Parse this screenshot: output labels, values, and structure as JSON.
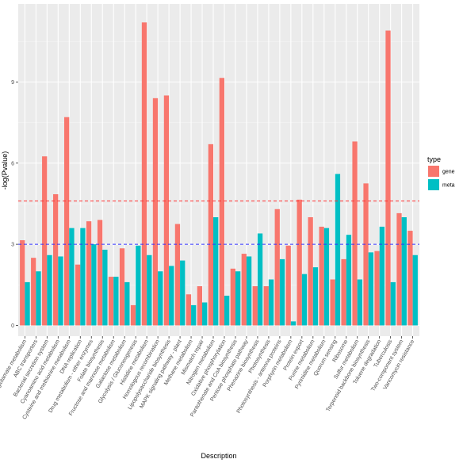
{
  "chart_data": {
    "type": "bar",
    "xlabel": "Description",
    "ylabel": "-log(Pvalue)",
    "ylim": [
      0,
      12
    ],
    "yticks": [
      0,
      3,
      6,
      9
    ],
    "grid": true,
    "legend": {
      "title": "type",
      "placement": "right",
      "entries": [
        {
          "name": "gene",
          "color": "#F8766D"
        },
        {
          "name": "meta",
          "color": "#00BFC4"
        }
      ]
    },
    "reference_lines": [
      {
        "y": 4.6,
        "color": "#FF3333",
        "style": "dashed"
      },
      {
        "y": 3.0,
        "color": "#3333FF",
        "style": "dashed"
      }
    ],
    "categories": [
      "Alanine, aspartate and glutamate metabolism",
      "ABC transporters",
      "Bacterial secretion system",
      "Cyanoamino acid metabolism",
      "Cysteine and methionine metabolism",
      "DNA replication",
      "Drug metabolism - other enzymes",
      "Folate biosynthesis",
      "Fructose and mannose metabolism",
      "Galactose metabolism",
      "Glycolysis / Gluconeogenesis",
      "Histidine metabolism",
      "Homologous recombination",
      "Lipopolysaccharide biosynthesis",
      "MAPK signaling pathway - plant",
      "Methane metabolism",
      "Mismatch repair",
      "Nitrogen metabolism",
      "Oxidative phosphorylation",
      "Pantothenate and CoA biosynthesis",
      "Pentose phosphate pathway",
      "Phenazine biosynthesis",
      "Photosynthesis",
      "Photosynthesis - antenna proteins",
      "Porphyrin metabolism",
      "Protein export",
      "Purine metabolism",
      "Pyrimidine metabolism",
      "Quorum sensing",
      "Ribosome",
      "Sulfur metabolism",
      "Terpenoid backbone biosynthesis",
      "Toluene degradation",
      "Tuberculosis",
      "Two-component system",
      "Vancomycin resistance"
    ],
    "category_labels": [
      "Alanine, aspartate and glutamate metabolism",
      "ABC transporters",
      "Bacterial secretion system",
      "Cyanoamino acid metabolism",
      "Cysteine and methionine metabolism",
      "DNA replication",
      "Drug metabolism - other enzymes",
      "Folate biosynthesis",
      "Fructose and mannose metabolism",
      "Galactose metabolism",
      "Glycolysis / Gluconeogenesis",
      "Histidine metabolism",
      "Homologous recombination",
      "Lipopolysaccharide biosynthesis",
      "MAPK signaling pathway - plant",
      "Methane metabolism",
      "Mismatch repair",
      "Nitrogen metabolism",
      "Oxidative phosphorylation",
      "Pantothenate and CoA biosynthesis",
      "Pentose phosphate pathway",
      "Phenazine biosynthesis",
      "Photosynthesis",
      "Photosynthesis - antenna proteins",
      "Porphyrin metabolism",
      "Protein export",
      "Purine metabolism",
      "Pyrimidine metabolism",
      "Quorum sensing",
      "Ribosome",
      "Sulfur metabolism",
      "Terpenoid backbone biosynthesis",
      "Toluene degradation",
      "Tuberculosis",
      "Two-component system",
      "Vancomycin resistance"
    ],
    "series": [
      {
        "name": "gene",
        "color": "#F8766D",
        "values": [
          3.15,
          2.5,
          6.25,
          4.85,
          7.7,
          2.25,
          3.85,
          3.9,
          1.8,
          2.85,
          0.75,
          11.2,
          8.4,
          8.5,
          3.75,
          1.15,
          1.45,
          6.7,
          9.15,
          2.1,
          2.65,
          1.45,
          1.45,
          4.3,
          2.95,
          4.65,
          4.0,
          3.65,
          1.7,
          2.45,
          6.8,
          5.25,
          2.75,
          10.9,
          4.15,
          3.5
        ]
      },
      {
        "name": "meta",
        "color": "#00BFC4",
        "values": [
          1.6,
          2.0,
          2.6,
          2.55,
          3.6,
          3.6,
          3.0,
          2.8,
          1.8,
          1.6,
          2.95,
          2.6,
          2.0,
          2.2,
          2.4,
          0.75,
          0.85,
          4.0,
          1.1,
          2.0,
          2.55,
          3.4,
          1.7,
          2.45,
          0.15,
          1.9,
          2.15,
          3.6,
          5.6,
          3.35,
          1.7,
          2.7,
          3.65,
          1.6,
          4.0,
          2.6
        ]
      }
    ]
  }
}
